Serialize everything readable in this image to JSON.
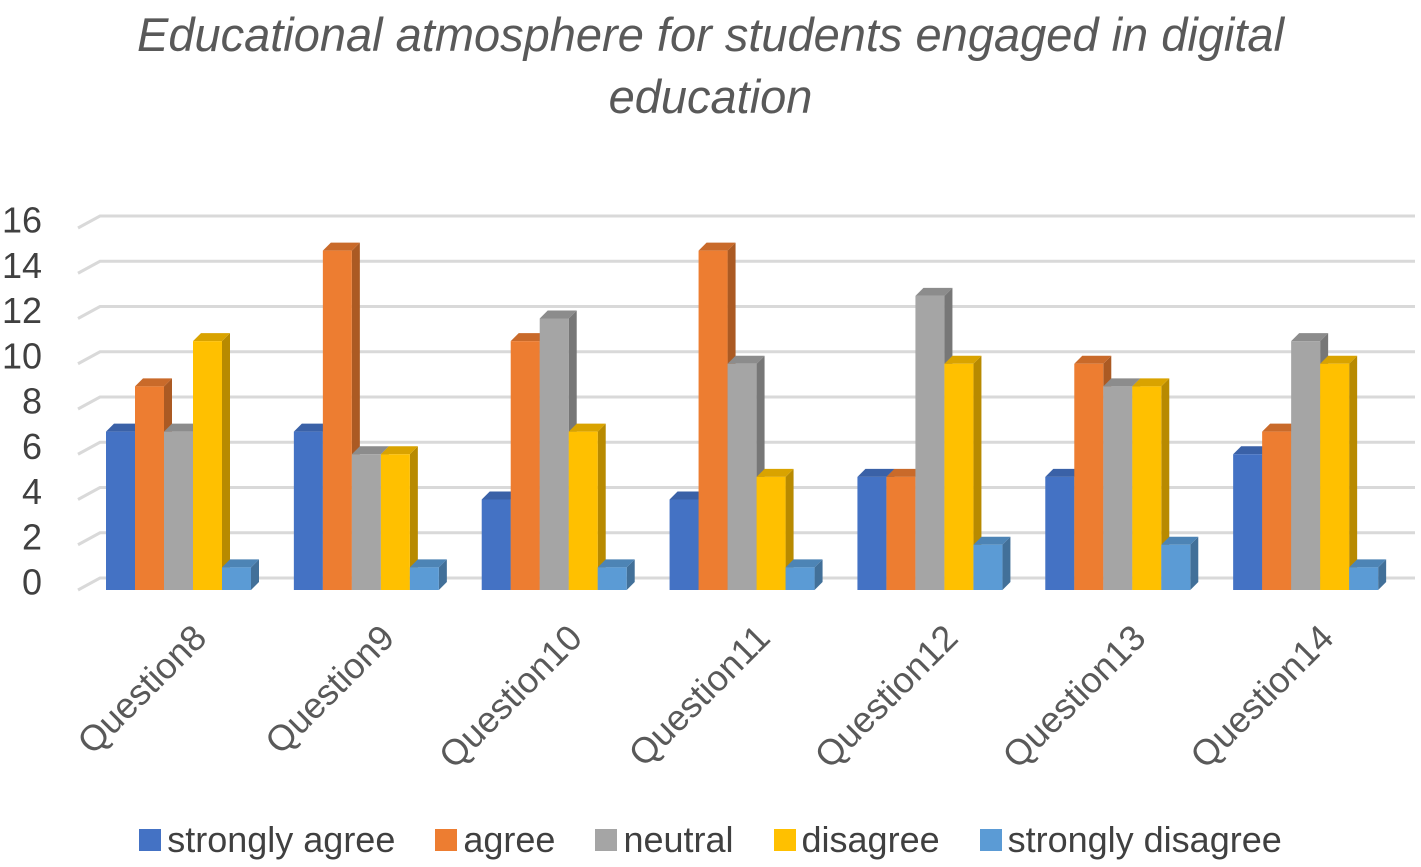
{
  "chart_data": {
    "type": "bar",
    "title_line1": "Educational atmosphere for students engaged in digital",
    "title_line2": "education",
    "categories": [
      "Question8",
      "Question9",
      "Question10",
      "Question11",
      "Question12",
      "Question13",
      "Question14"
    ],
    "series": [
      {
        "name": "strongly agree",
        "color": "#4472C4",
        "values": [
          7,
          7,
          4,
          4,
          5,
          5,
          6
        ]
      },
      {
        "name": "agree",
        "color": "#ED7D31",
        "values": [
          9,
          15,
          11,
          15,
          5,
          10,
          7
        ]
      },
      {
        "name": "neutral",
        "color": "#A5A5A5",
        "values": [
          7,
          6,
          12,
          10,
          13,
          9,
          11
        ]
      },
      {
        "name": "disagree",
        "color": "#FFC000",
        "values": [
          11,
          6,
          7,
          5,
          10,
          9,
          10
        ]
      },
      {
        "name": "strongly disagree",
        "color": "#5B9BD5",
        "values": [
          1,
          1,
          1,
          1,
          2,
          2,
          1
        ]
      }
    ],
    "yticks": [
      "0",
      "2",
      "4",
      "6",
      "8",
      "10",
      "12",
      "14",
      "16"
    ],
    "ylim": [
      0,
      16
    ],
    "grid": true,
    "legend_position": "bottom"
  }
}
